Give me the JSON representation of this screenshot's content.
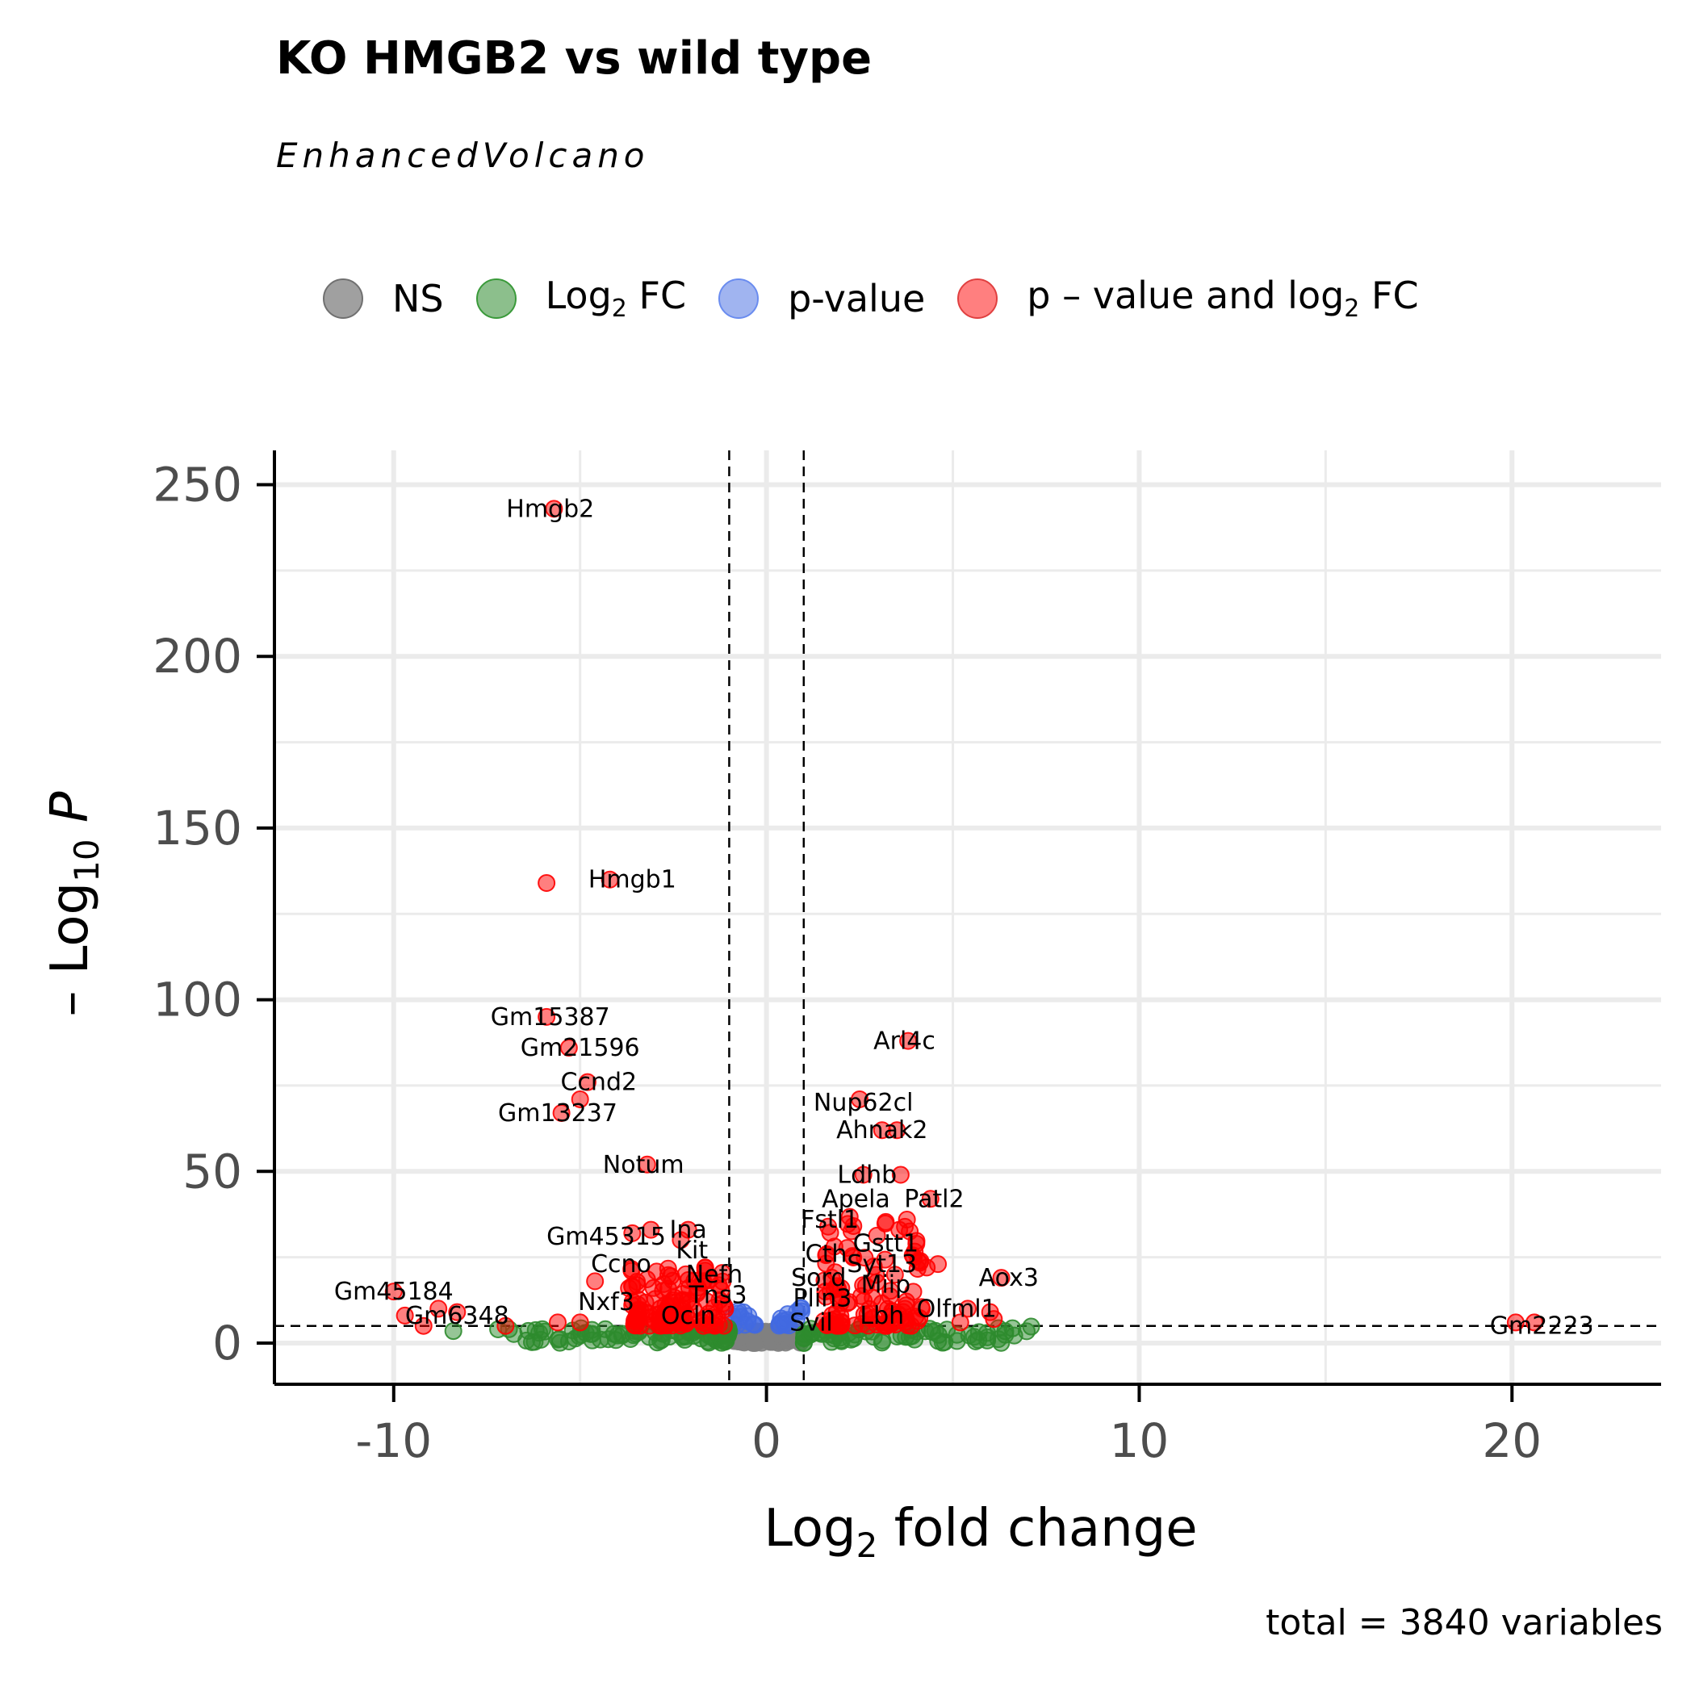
{
  "title": "KO HMGB2 vs wild type",
  "subtitle": "EnhancedVolcano",
  "caption": "total = 3840 variables",
  "legend": [
    {
      "label_main": "NS",
      "label_sub": "",
      "label_tail": "",
      "color": "#808080"
    },
    {
      "label_main": "Log",
      "label_sub": "2",
      "label_tail": " FC",
      "color": "#2e8b2e"
    },
    {
      "label_main": "p-value",
      "label_sub": "",
      "label_tail": "",
      "color": "#4169e1"
    },
    {
      "label_main": "p – value and log",
      "label_sub": "2",
      "label_tail": " FC",
      "color": "#ff0000"
    }
  ],
  "chart_data": {
    "type": "scatter",
    "xlabel_main": "Log",
    "xlabel_sub": "2",
    "xlabel_tail": " fold change",
    "ylabel_main": "– Log",
    "ylabel_sub": "10",
    "ylabel_tail": " P",
    "xlim": [
      -13.2,
      24
    ],
    "ylim": [
      -12,
      260
    ],
    "xticks": [
      -10,
      0,
      10,
      20
    ],
    "yticks": [
      0,
      50,
      100,
      150,
      200,
      250
    ],
    "xtick_labels": [
      "-10",
      "0",
      "10",
      "20"
    ],
    "ytick_labels": [
      "0",
      "50",
      "100",
      "150",
      "200",
      "250"
    ],
    "grid": true,
    "fc_cutoff": 1,
    "p_cutoff_neglog10": 5,
    "colors": {
      "ns": "#808080",
      "fc": "#2e8b2e",
      "p": "#4169e1",
      "both": "#ff0000"
    },
    "labeled_points": [
      {
        "gene": "Hmgb2",
        "x": -5.7,
        "y": 243
      },
      {
        "gene": "Hmgb1",
        "x": -5.9,
        "y": 134
      },
      {
        "gene": "Hmgb1",
        "x": -4.2,
        "y": 135
      },
      {
        "gene": "Gm15387",
        "x": -5.9,
        "y": 95
      },
      {
        "gene": "Gm21596",
        "x": -5.3,
        "y": 86
      },
      {
        "gene": "Ccnd2",
        "x": -4.8,
        "y": 76
      },
      {
        "gene": "Gm13237",
        "x": -5.0,
        "y": 71
      },
      {
        "gene": "Gm13237",
        "x": -5.5,
        "y": 67
      },
      {
        "gene": "Notum",
        "x": -3.2,
        "y": 52
      },
      {
        "gene": "Arl4c",
        "x": 3.8,
        "y": 88
      },
      {
        "gene": "Nup62cl",
        "x": 2.5,
        "y": 71
      },
      {
        "gene": "Ahnak2",
        "x": 3.1,
        "y": 62
      },
      {
        "gene": "Ahnak2",
        "x": 3.5,
        "y": 62
      },
      {
        "gene": "Ldhb",
        "x": 2.6,
        "y": 49
      },
      {
        "gene": "Ldhb",
        "x": 3.6,
        "y": 49
      },
      {
        "gene": "Patl2",
        "x": 4.4,
        "y": 42
      },
      {
        "gene": "Gm2223",
        "x": 20.1,
        "y": 6
      },
      {
        "gene": "Gm2223",
        "x": 20.6,
        "y": 6
      },
      {
        "gene": "Gm45184",
        "x": -10.0,
        "y": 15
      },
      {
        "gene": "Gm6348",
        "x": -8.3,
        "y": 9
      },
      {
        "gene": "Aox3",
        "x": 6.3,
        "y": 19
      }
    ],
    "labels": [
      {
        "text": "Hmgb2",
        "x": -5.8,
        "y": 243
      },
      {
        "text": "Hmgb1",
        "x": -3.6,
        "y": 135
      },
      {
        "text": "Gm15387",
        "x": -5.8,
        "y": 95
      },
      {
        "text": "Gm21596",
        "x": -5.0,
        "y": 86
      },
      {
        "text": "Ccnd2",
        "x": -4.5,
        "y": 76
      },
      {
        "text": "Gm13237",
        "x": -5.6,
        "y": 67
      },
      {
        "text": "Notum",
        "x": -3.3,
        "y": 52
      },
      {
        "text": "Gm45315",
        "x": -4.3,
        "y": 31
      },
      {
        "text": "Ina",
        "x": -2.1,
        "y": 33
      },
      {
        "text": "Kit",
        "x": -2.0,
        "y": 27
      },
      {
        "text": "Ccno",
        "x": -3.9,
        "y": 23
      },
      {
        "text": "Nefh",
        "x": -1.4,
        "y": 20
      },
      {
        "text": "Tns3",
        "x": -1.3,
        "y": 14
      },
      {
        "text": "Nxf3",
        "x": -4.3,
        "y": 12
      },
      {
        "text": "Ocln",
        "x": -2.1,
        "y": 8
      },
      {
        "text": "Gm45184",
        "x": -10.0,
        "y": 15
      },
      {
        "text": "Gm6348",
        "x": -8.3,
        "y": 8
      },
      {
        "text": "Arl4c",
        "x": 3.7,
        "y": 88
      },
      {
        "text": "Nup62cl",
        "x": 2.6,
        "y": 70
      },
      {
        "text": "Ahnak2",
        "x": 3.1,
        "y": 62
      },
      {
        "text": "Ldhb",
        "x": 2.7,
        "y": 49
      },
      {
        "text": "Apela",
        "x": 2.4,
        "y": 42
      },
      {
        "text": "Patl2",
        "x": 4.5,
        "y": 42
      },
      {
        "text": "Fstl1",
        "x": 1.7,
        "y": 36
      },
      {
        "text": "Gstt1",
        "x": 3.2,
        "y": 29
      },
      {
        "text": "Cth",
        "x": 1.6,
        "y": 26
      },
      {
        "text": "Syt13",
        "x": 3.1,
        "y": 23
      },
      {
        "text": "Sord",
        "x": 1.4,
        "y": 19
      },
      {
        "text": "Miip",
        "x": 3.2,
        "y": 17
      },
      {
        "text": "Aox3",
        "x": 6.5,
        "y": 19
      },
      {
        "text": "Plin3",
        "x": 1.5,
        "y": 13
      },
      {
        "text": "Olfml1",
        "x": 5.1,
        "y": 10
      },
      {
        "text": "Svil",
        "x": 1.2,
        "y": 6
      },
      {
        "text": "Lbh",
        "x": 3.1,
        "y": 8
      },
      {
        "text": "Gm2223",
        "x": 20.8,
        "y": 5
      }
    ]
  }
}
